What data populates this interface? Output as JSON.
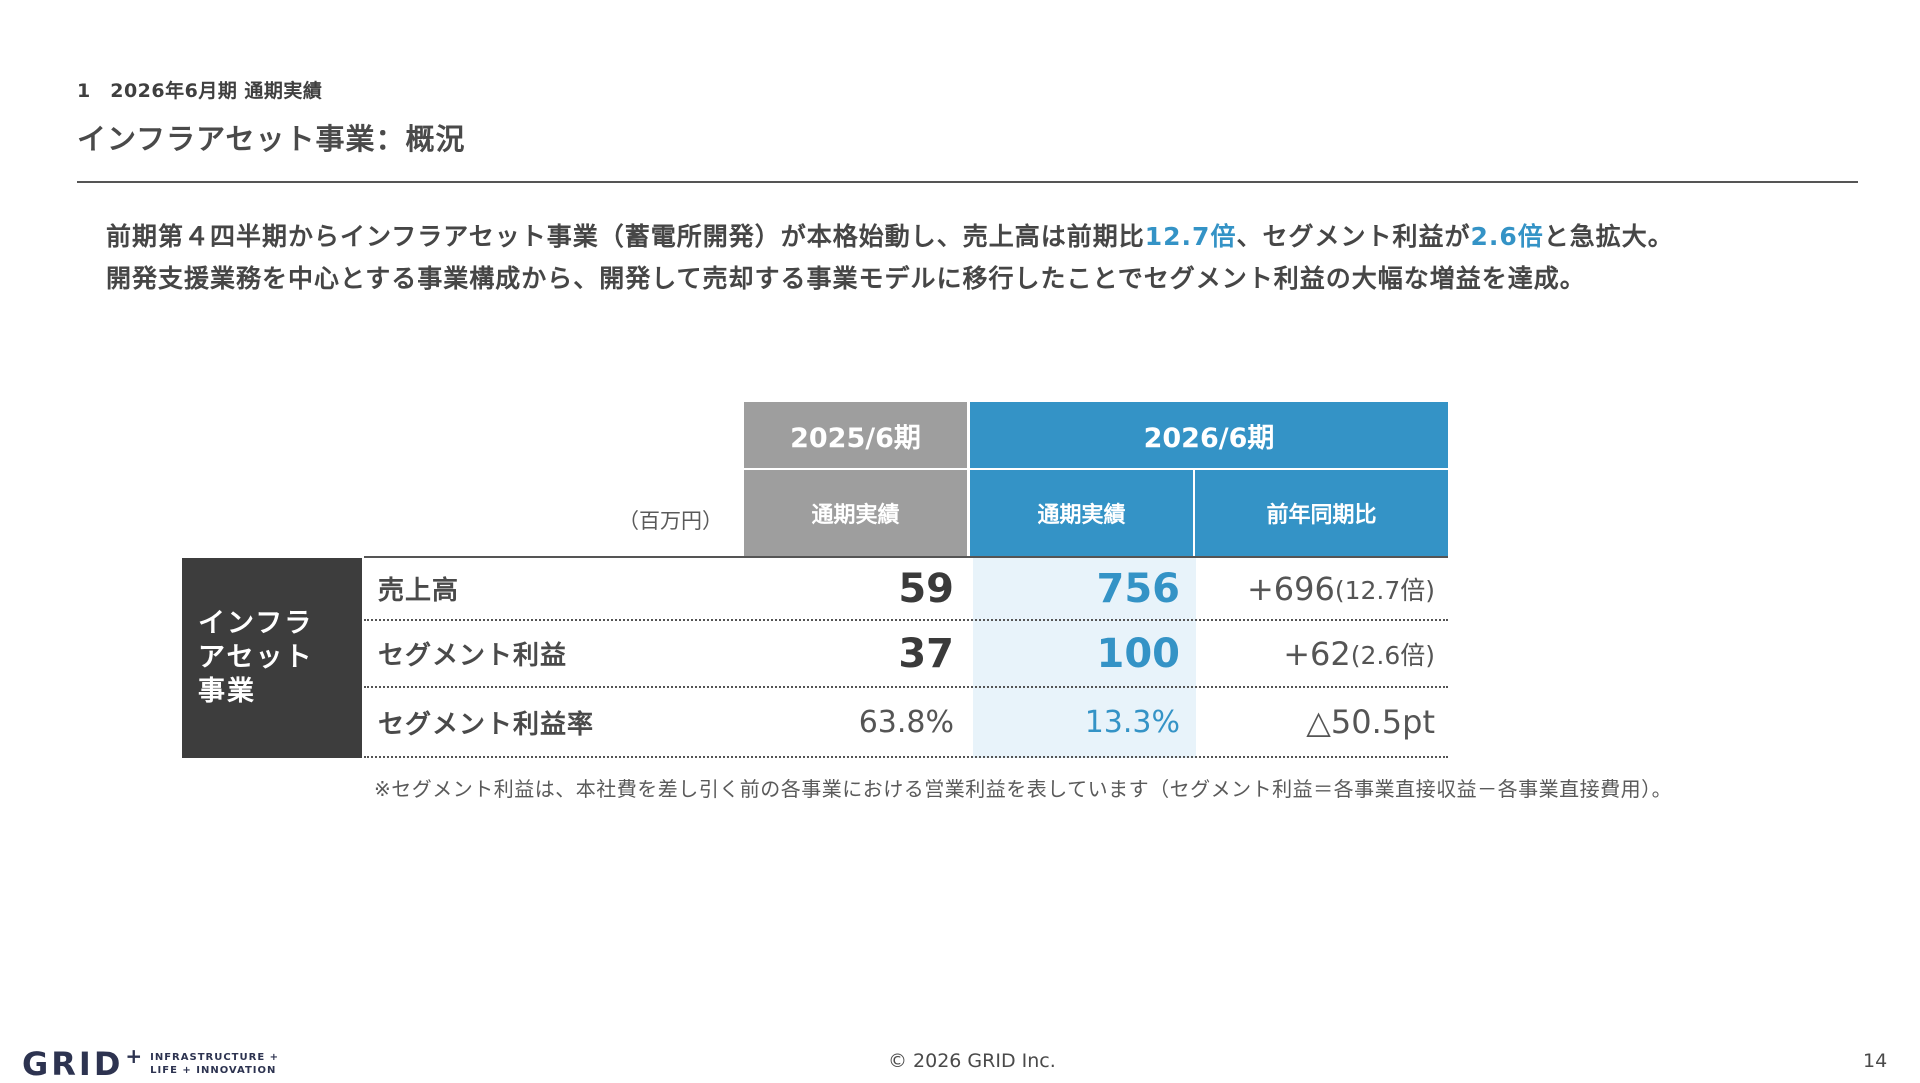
{
  "header": {
    "section_label": "1　2026年6月期 通期実績",
    "title": "インフラアセット事業：概況"
  },
  "summary": {
    "line1_a": "前期第４四半期からインフラアセット事業（蓄電所開発）が本格始動し、売上高は前期比",
    "line1_hl1": "12.7倍",
    "line1_b": "、セグメント利益が",
    "line1_hl2": "2.6倍",
    "line1_c": "と急拡大。",
    "line2": "開発支援業務を中心とする事業構成から、開発して売却する事業モデルに移行したことでセグメント利益の大幅な増益を達成。"
  },
  "table": {
    "unit": "（百万円）",
    "col_prev_period": "2025/6期",
    "col_cur_period": "2026/6期",
    "col_prev_sub": "通期実績",
    "col_cur_sub": "通期実績",
    "col_yoy_sub": "前年同期比",
    "segment": [
      "インフラ",
      "アセット",
      "事業"
    ],
    "rows": [
      {
        "label": "売上高",
        "prev": "59",
        "cur": "756",
        "yoy": "+696",
        "yoy_ratio": "(12.7倍)"
      },
      {
        "label": "セグメント利益",
        "prev": "37",
        "cur": "100",
        "yoy": "+62",
        "yoy_ratio": "(2.6倍)"
      },
      {
        "label": "セグメント利益率",
        "prev": "63.8%",
        "cur": "13.3%",
        "yoy": "△50.5pt",
        "yoy_ratio": ""
      }
    ]
  },
  "footnote": "※セグメント利益は、本社費を差し引く前の各事業における営業利益を表しています（セグメント利益＝各事業直接収益－各事業直接費用）。",
  "footer": {
    "logo_word": "GRID",
    "logo_plus": "+",
    "logo_tag_line1": "INFRASTRUCTURE +",
    "logo_tag_line2": "LIFE + INNOVATION",
    "copyright": "© 2026 GRID Inc.",
    "page_number": "14"
  },
  "colors": {
    "accent": "#3493c6",
    "prev_header": "#9e9e9e",
    "row_header": "#3d3d3d",
    "highlight_col": "#e8f3fa"
  }
}
